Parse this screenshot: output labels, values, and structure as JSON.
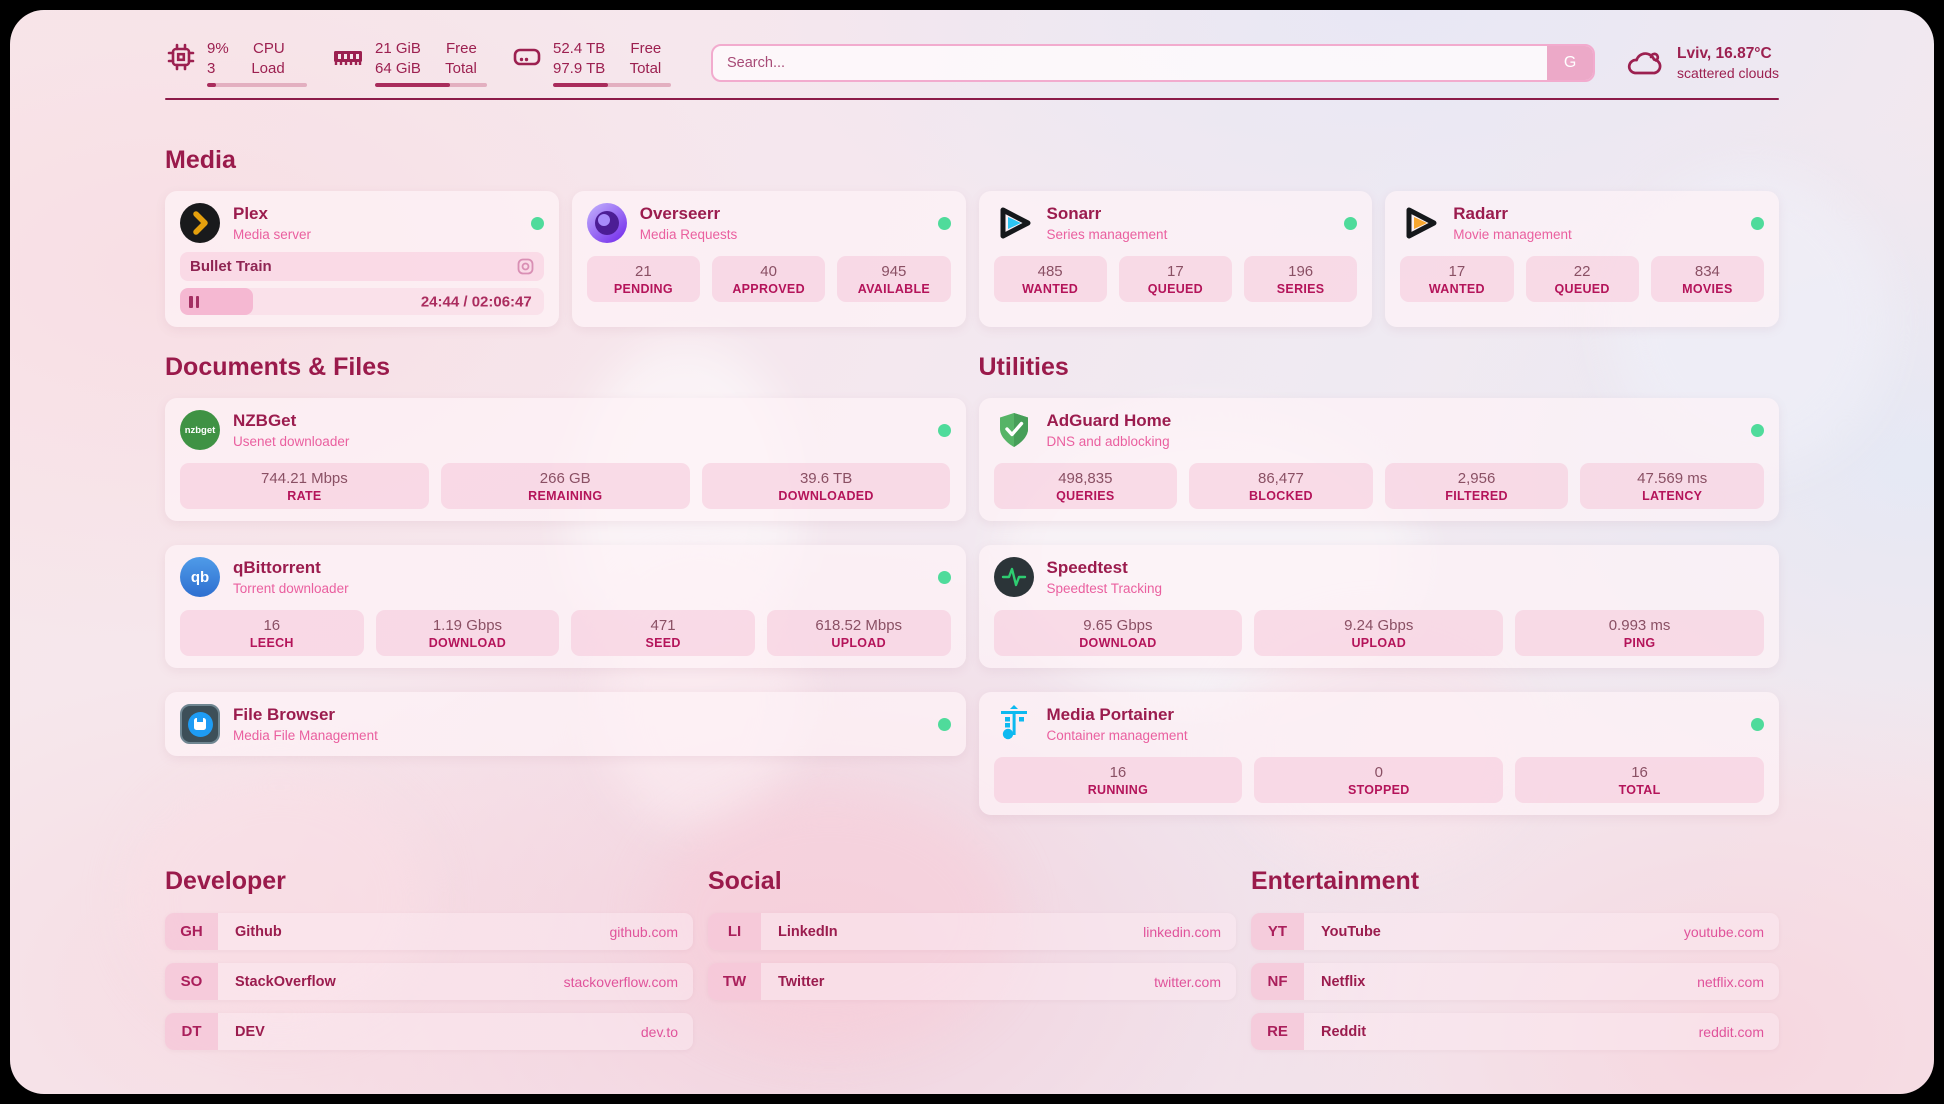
{
  "theme": {
    "accent_maroon": "#9b1c4e",
    "subtitle_pink": "#ea5f9f",
    "link_pink": "#e0539b",
    "online_green": "#4fdb9b",
    "bar_fill": "#a92c5c"
  },
  "header": {
    "cpu": {
      "icon": "cpu-chip-icon",
      "value_top": "9%",
      "value_bottom": "3",
      "label_top": "CPU",
      "label_bottom": "Load",
      "progress": 9
    },
    "memory": {
      "icon": "ram-icon",
      "value_top": "21 GiB",
      "value_bottom": "64 GiB",
      "label_top": "Free",
      "label_bottom": "Total",
      "progress": 67
    },
    "disk": {
      "icon": "hard-disk-icon",
      "value_top": "52.4 TB",
      "value_bottom": "97.9 TB",
      "label_top": "Free",
      "label_bottom": "Total",
      "progress": 47
    },
    "search": {
      "placeholder": "Search...",
      "button_label": "G"
    },
    "weather": {
      "icon": "cloud-icon",
      "location_temp": "Lviv, 16.87°C",
      "condition": "scattered clouds"
    }
  },
  "sections": {
    "media": {
      "title": "Media",
      "cards": [
        {
          "id": "plex",
          "icon": "plex-icon",
          "name": "Plex",
          "subtitle": "Media server",
          "online": true,
          "now_playing": {
            "title": "Bullet Train",
            "time": "24:44 / 02:06:47",
            "progress_pct": 20
          }
        },
        {
          "id": "overseerr",
          "icon": "overseerr-icon",
          "name": "Overseerr",
          "subtitle": "Media Requests",
          "online": true,
          "stats": [
            {
              "value": "21",
              "label": "PENDING"
            },
            {
              "value": "40",
              "label": "APPROVED"
            },
            {
              "value": "945",
              "label": "AVAILABLE"
            }
          ]
        },
        {
          "id": "sonarr",
          "icon": "sonarr-icon",
          "name": "Sonarr",
          "subtitle": "Series management",
          "online": true,
          "stats": [
            {
              "value": "485",
              "label": "WANTED"
            },
            {
              "value": "17",
              "label": "QUEUED"
            },
            {
              "value": "196",
              "label": "SERIES"
            }
          ]
        },
        {
          "id": "radarr",
          "icon": "radarr-icon",
          "name": "Radarr",
          "subtitle": "Movie management",
          "online": true,
          "stats": [
            {
              "value": "17",
              "label": "WANTED"
            },
            {
              "value": "22",
              "label": "QUEUED"
            },
            {
              "value": "834",
              "label": "MOVIES"
            }
          ]
        }
      ]
    },
    "columns": [
      {
        "title": "Documents & Files",
        "cards": [
          {
            "id": "nzbget",
            "icon": "nzbget-icon",
            "name": "NZBGet",
            "subtitle": "Usenet downloader",
            "online": true,
            "stats": [
              {
                "value": "744.21 Mbps",
                "label": "RATE"
              },
              {
                "value": "266 GB",
                "label": "REMAINING"
              },
              {
                "value": "39.6 TB",
                "label": "DOWNLOADED"
              }
            ]
          },
          {
            "id": "qbittorrent",
            "icon": "qbittorrent-icon",
            "name": "qBittorrent",
            "subtitle": "Torrent downloader",
            "online": true,
            "stats": [
              {
                "value": "16",
                "label": "LEECH"
              },
              {
                "value": "1.19 Gbps",
                "label": "DOWNLOAD"
              },
              {
                "value": "471",
                "label": "SEED"
              },
              {
                "value": "618.52 Mbps",
                "label": "UPLOAD"
              }
            ]
          },
          {
            "id": "filebrowser",
            "icon": "file-browser-icon",
            "name": "File Browser",
            "subtitle": "Media File Management",
            "online": true,
            "stats": []
          }
        ]
      },
      {
        "title": "Utilities",
        "cards": [
          {
            "id": "adguard",
            "icon": "adguard-shield-icon",
            "name": "AdGuard Home",
            "subtitle": "DNS and adblocking",
            "online": true,
            "stats": [
              {
                "value": "498,835",
                "label": "QUERIES"
              },
              {
                "value": "86,477",
                "label": "BLOCKED"
              },
              {
                "value": "2,956",
                "label": "FILTERED"
              },
              {
                "value": "47.569 ms",
                "label": "LATENCY"
              }
            ]
          },
          {
            "id": "speedtest",
            "icon": "speedtest-pulse-icon",
            "name": "Speedtest",
            "subtitle": "Speedtest Tracking",
            "online": false,
            "stats": [
              {
                "value": "9.65 Gbps",
                "label": "DOWNLOAD"
              },
              {
                "value": "9.24 Gbps",
                "label": "UPLOAD"
              },
              {
                "value": "0.993 ms",
                "label": "PING"
              }
            ]
          },
          {
            "id": "portainer",
            "icon": "portainer-crane-icon",
            "name": "Media Portainer",
            "subtitle": "Container management",
            "online": true,
            "stats": [
              {
                "value": "16",
                "label": "RUNNING"
              },
              {
                "value": "0",
                "label": "STOPPED"
              },
              {
                "value": "16",
                "label": "TOTAL"
              }
            ]
          }
        ]
      }
    ],
    "links": [
      {
        "title": "Developer",
        "items": [
          {
            "abbr": "GH",
            "name": "Github",
            "url": "github.com"
          },
          {
            "abbr": "SO",
            "name": "StackOverflow",
            "url": "stackoverflow.com"
          },
          {
            "abbr": "DT",
            "name": "DEV",
            "url": "dev.to"
          }
        ]
      },
      {
        "title": "Social",
        "items": [
          {
            "abbr": "LI",
            "name": "LinkedIn",
            "url": "linkedin.com"
          },
          {
            "abbr": "TW",
            "name": "Twitter",
            "url": "twitter.com"
          }
        ]
      },
      {
        "title": "Entertainment",
        "items": [
          {
            "abbr": "YT",
            "name": "YouTube",
            "url": "youtube.com"
          },
          {
            "abbr": "NF",
            "name": "Netflix",
            "url": "netflix.com"
          },
          {
            "abbr": "RE",
            "name": "Reddit",
            "url": "reddit.com"
          }
        ]
      }
    ]
  }
}
